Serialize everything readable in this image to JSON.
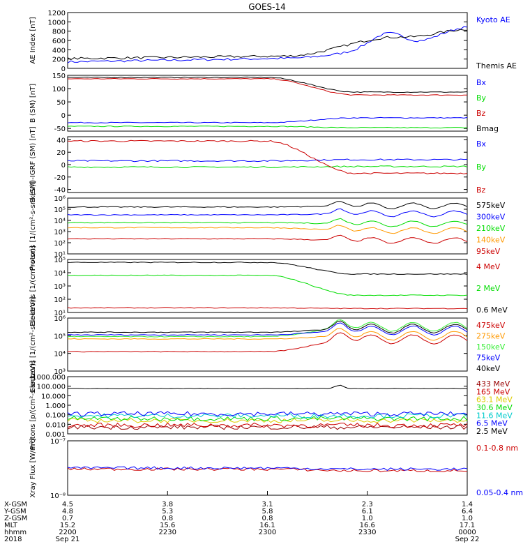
{
  "title": "GOES-14",
  "colors": {
    "black": "#000000",
    "blue": "#0000ff",
    "green": "#00dd00",
    "red": "#cc0000",
    "orange": "#ff9900",
    "lightgreen": "#33ee33",
    "darkred": "#990000",
    "yellow": "#ddcc00",
    "cyan": "#00cccc",
    "purple": "#aa00aa"
  },
  "chart_data": [
    {
      "type": "line",
      "id": "ae",
      "ylabel": "AE Index [nT]",
      "scale": "linear",
      "ylim": [
        0,
        1200
      ],
      "ticks": [
        "0",
        "200",
        "400",
        "600",
        "800",
        "1000",
        "1200"
      ],
      "series": [
        {
          "name": "Kyoto AE",
          "color": "#0000ff",
          "style": "ae_kyoto"
        },
        {
          "name": "Themis AE",
          "color": "#000000",
          "style": "ae_themis"
        }
      ]
    },
    {
      "type": "line",
      "id": "bsm",
      "ylabel": "B (SM) [nT]",
      "scale": "linear",
      "ylim": [
        -60,
        150
      ],
      "ticks": [
        "-50",
        "0",
        "50",
        "100",
        "150"
      ],
      "series": [
        {
          "name": "Bx",
          "color": "#0000ff",
          "start": -28,
          "end": -10
        },
        {
          "name": "By",
          "color": "#00dd00",
          "start": -42,
          "end": -47
        },
        {
          "name": "Bz",
          "color": "#cc0000",
          "start": 137,
          "end": 76
        },
        {
          "name": "Bmag",
          "color": "#000000",
          "start": 142,
          "end": 87
        }
      ]
    },
    {
      "type": "line",
      "id": "bigrf",
      "ylabel": "B (SM)-IGRF (SM) [nT]",
      "scale": "linear",
      "ylim": [
        -45,
        45
      ],
      "ticks": [
        "-40",
        "-20",
        "0",
        "20",
        "40"
      ],
      "series": [
        {
          "name": "Bx",
          "color": "#0000ff",
          "start": 6,
          "end": 8
        },
        {
          "name": "By",
          "color": "#00dd00",
          "start": -4,
          "end": -3
        },
        {
          "name": "Bz",
          "color": "#cc0000",
          "start": 38,
          "end": -14
        }
      ]
    },
    {
      "type": "line",
      "id": "protons_kev",
      "ylabel": "Protons [1/(cm²-s-sr-keV)]",
      "scale": "log",
      "ylim": [
        1,
        6
      ],
      "ticks": [
        "10¹",
        "10²",
        "10³",
        "10⁴",
        "10⁵",
        "10⁶"
      ],
      "series": [
        {
          "name": "575keV",
          "color": "#000000",
          "start": 5.2,
          "end": 5.3
        },
        {
          "name": "300keV",
          "color": "#0000ff",
          "start": 4.5,
          "end": 4.6
        },
        {
          "name": "210keV",
          "color": "#00dd00",
          "start": 3.8,
          "end": 3.7
        },
        {
          "name": "140keV",
          "color": "#ff9900",
          "start": 3.35,
          "end": 3.1
        },
        {
          "name": "95keV",
          "color": "#cc0000",
          "start": 2.35,
          "end": 2.2
        }
      ]
    },
    {
      "type": "line",
      "id": "electrons_mev",
      "ylabel": "Electrons [1/(cm²-s-sr)]",
      "scale": "log",
      "ylim": [
        1,
        5
      ],
      "ticks": [
        "10¹",
        "10²",
        "10³",
        "10⁴",
        "10⁵"
      ],
      "series": [
        {
          "name": "4 MeV",
          "color": "#cc0000",
          "start": 1.35,
          "end": 1.3
        },
        {
          "name": "2 MeV",
          "color": "#00dd00",
          "start": 3.8,
          "end": 2.3
        },
        {
          "name": "0.6 MeV",
          "color": "#000000",
          "start": 4.78,
          "end": 3.9
        }
      ]
    },
    {
      "type": "line",
      "id": "electrons_kev",
      "ylabel": "Electrons [1/(cm²-s-sr-keV)]",
      "scale": "log",
      "ylim": [
        3,
        6
      ],
      "ticks": [
        "10³",
        "10⁴",
        "10⁵",
        "10⁶"
      ],
      "series": [
        {
          "name": "475keV",
          "color": "#cc0000",
          "start": 4.1,
          "end": 4.8
        },
        {
          "name": "275keV",
          "color": "#ff9900",
          "start": 4.82,
          "end": 5.0
        },
        {
          "name": "150keV",
          "color": "#33ee33",
          "start": 4.95,
          "end": 5.5
        },
        {
          "name": "75keV",
          "color": "#0000ff",
          "start": 5.05,
          "end": 5.3
        },
        {
          "name": "40keV",
          "color": "#000000",
          "start": 5.2,
          "end": 5.4
        }
      ]
    },
    {
      "type": "line",
      "id": "protons_mev",
      "ylabel": "Protons [p/(cm²-s-sr-keV)]",
      "scale": "log",
      "ylim": [
        -3,
        3
      ],
      "ticks": [
        "0.001",
        "0.010",
        "0.100",
        "1.000",
        "10.000",
        "100.000",
        "1000.000"
      ],
      "series": [
        {
          "name": "433 MeV",
          "color": "#990000",
          "start": -2.3,
          "end": -2.3
        },
        {
          "name": "165 MeV",
          "color": "#cc0000",
          "start": -2.1,
          "end": -2.1
        },
        {
          "name": "63.1 MeV",
          "color": "#ddcc00",
          "start": -1.6,
          "end": -1.6
        },
        {
          "name": "30.6 MeV",
          "color": "#00dd00",
          "start": -1.4,
          "end": -1.4
        },
        {
          "name": "11.6 MeV",
          "color": "#00cccc",
          "start": -1.1,
          "end": -1.1
        },
        {
          "name": "6.5 MeV",
          "color": "#0000ff",
          "start": -0.9,
          "end": -0.9
        },
        {
          "name": "2.5 MeV",
          "color": "#000000",
          "start": 1.75,
          "end": 1.75
        }
      ]
    },
    {
      "type": "line",
      "id": "xray",
      "ylabel": "Xray Flux [W/m²]",
      "scale": "log",
      "ylim": [
        -8,
        -7
      ],
      "ticks": [
        "10⁻⁸",
        "10⁻⁷"
      ],
      "series": [
        {
          "name": "0.1-0.8 nm",
          "color": "#cc0000",
          "start": -7.52,
          "end": -7.55
        },
        {
          "name": "0.05-0.4 nm",
          "color": "#0000ff",
          "start": -7.5,
          "end": -7.52
        }
      ]
    }
  ],
  "x_axis": {
    "rows": [
      {
        "label": "X-GSM",
        "values": [
          "4.5",
          "3.8",
          "3.1",
          "2.3",
          "1.4"
        ]
      },
      {
        "label": "Y-GSM",
        "values": [
          "4.8",
          "5.3",
          "5.8",
          "6.1",
          "6.4"
        ]
      },
      {
        "label": "Z-GSM",
        "values": [
          "0.7",
          "0.8",
          "0.8",
          "1.0",
          "1.0"
        ]
      },
      {
        "label": "MLT",
        "values": [
          "15.2",
          "15.6",
          "16.1",
          "16.6",
          "17.1"
        ]
      },
      {
        "label": "hhmm",
        "values": [
          "2200",
          "2230",
          "2300",
          "2330",
          "0000"
        ]
      },
      {
        "label": "2018",
        "values": [
          "Sep 21",
          "",
          "",
          "",
          "Sep 22"
        ]
      }
    ]
  }
}
